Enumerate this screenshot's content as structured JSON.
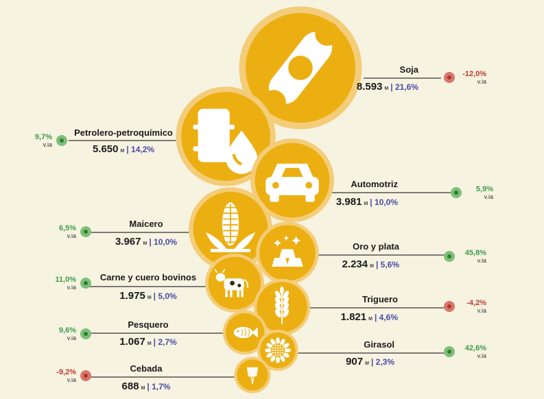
{
  "colors": {
    "background": "#f7f3e1",
    "bubble": "#ecaf12",
    "halo": "#f4cd7a",
    "positive": "#7fbf7a",
    "negative": "#d9756a",
    "positive_text": "#3f9a48",
    "negative_text": "#c0392b",
    "share_text": "#4a4aa8"
  },
  "chart_data": {
    "type": "bubble",
    "unit": "M",
    "variation_label": "v.ia",
    "items": [
      {
        "name": "Soja",
        "value": 8593,
        "value_label": "8.593",
        "share": "21,6%",
        "variation": "-12,0%",
        "icon": "soybean-icon"
      },
      {
        "name": "Petrolero-petroquímico",
        "value": 5650,
        "value_label": "5.650",
        "share": "14,2%",
        "variation": "9,7%",
        "icon": "oil-barrel-drop-icon"
      },
      {
        "name": "Automotriz",
        "value": 3981,
        "value_label": "3.981",
        "share": "10,0%",
        "variation": "5,9%",
        "icon": "car-icon"
      },
      {
        "name": "Maicero",
        "value": 3967,
        "value_label": "3.967",
        "share": "10,0%",
        "variation": "6,5%",
        "icon": "corn-icon"
      },
      {
        "name": "Oro y plata",
        "value": 2234,
        "value_label": "2.234",
        "share": "5,6%",
        "variation": "45,8%",
        "icon": "gold-bars-icon"
      },
      {
        "name": "Carne y cuero bovinos",
        "value": 1975,
        "value_label": "1.975",
        "share": "5,0%",
        "variation": "11,0%",
        "icon": "cow-icon"
      },
      {
        "name": "Triguero",
        "value": 1821,
        "value_label": "1.821",
        "share": "4,6%",
        "variation": "-4,2%",
        "icon": "wheat-icon"
      },
      {
        "name": "Pesquero",
        "value": 1067,
        "value_label": "1.067",
        "share": "2,7%",
        "variation": "9,6%",
        "icon": "fish-icon"
      },
      {
        "name": "Girasol",
        "value": 907,
        "value_label": "907",
        "share": "2,3%",
        "variation": "42,6%",
        "icon": "sunflower-icon"
      },
      {
        "name": "Cebada",
        "value": 688,
        "value_label": "688",
        "share": "1,7%",
        "variation": "-9,2%",
        "icon": "barley-icon"
      }
    ]
  }
}
